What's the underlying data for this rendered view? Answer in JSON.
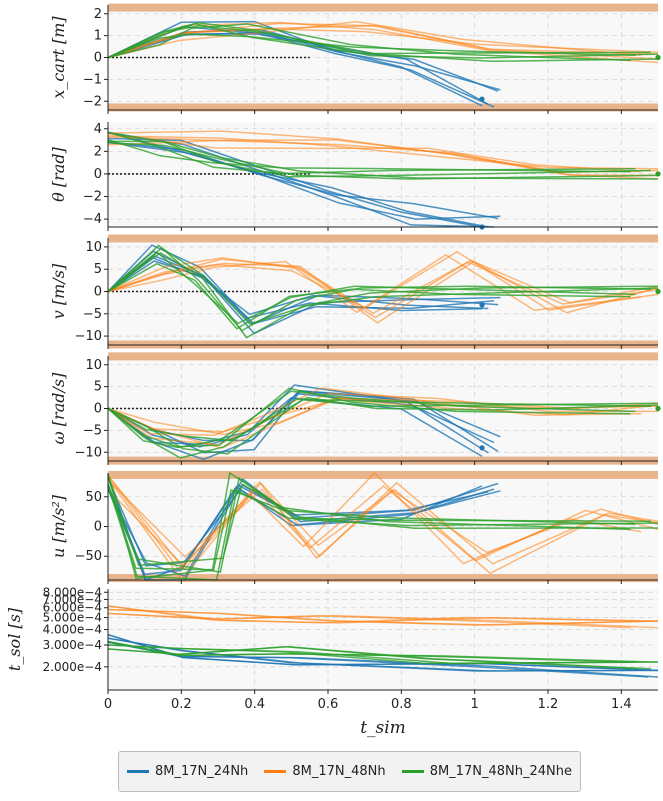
{
  "chart_data": {
    "type": "line",
    "xlabel": "t_sim",
    "x_ticks": [
      "0",
      "0.2",
      "0.4",
      "0.6",
      "0.8",
      "1",
      "1.2",
      "1.4"
    ],
    "xlim": [
      0,
      1.5
    ],
    "grid": true,
    "legend_position": "bottom-center",
    "series_names": [
      "8M_17N_24Nh",
      "8M_17N_48Nh",
      "8M_17N_48Nh_24Nhe"
    ],
    "colors": {
      "blue": "#1f77b4",
      "orange": "#ff7f0e",
      "green": "#2ca02c",
      "bound": "#e8b48c",
      "reference": "#222222"
    },
    "panels": [
      {
        "ylabel": "x_cart [m]",
        "ylim": [
          -2.4,
          2.4
        ],
        "yticks": [
          "2",
          "1",
          "0",
          "−1",
          "−2"
        ],
        "bounds": [
          2.1,
          -2.1
        ],
        "reference": 0,
        "reference_until": 0.55
      },
      {
        "ylabel": "θ [rad]",
        "ylim": [
          -4.7,
          4.6
        ],
        "yticks": [
          "4",
          "2",
          "0",
          "−2",
          "−4"
        ],
        "bounds": [],
        "reference": 0,
        "reference_until": 0.55
      },
      {
        "ylabel": "v [m/s]",
        "ylim": [
          -12,
          12
        ],
        "yticks": [
          "10",
          "5",
          "0",
          "−5",
          "−10"
        ],
        "bounds": [
          11,
          -11
        ],
        "reference": 0,
        "reference_until": 0.55
      },
      {
        "ylabel": "ω [rad/s]",
        "ylim": [
          -12,
          12
        ],
        "yticks": [
          "10",
          "5",
          "0",
          "−5",
          "−10"
        ],
        "bounds": [
          11,
          -11
        ],
        "reference": 0,
        "reference_until": 0.55
      },
      {
        "ylabel": "u [m/s²]",
        "ylim": [
          -90,
          90
        ],
        "yticks": [
          "50",
          "0",
          "−50"
        ],
        "bounds": [
          80,
          -80
        ],
        "reference": null,
        "reference_until": 0
      },
      {
        "ylabel": "t_sol [s]",
        "scale": "log",
        "ylim": [
          0.00013,
          0.00085
        ],
        "yticks": [
          "8.000e−4",
          "7.000e−4",
          "6.000e−4",
          "5.000e−4",
          "4.000e−4",
          "3.000e−4",
          "2.000e−4"
        ],
        "ytick_values": [
          0.0008,
          0.0007,
          0.0006,
          0.0005,
          0.0004,
          0.0003,
          0.0002
        ],
        "bounds": [],
        "reference": null,
        "reference_until": 0
      }
    ],
    "series": [
      {
        "name": "8M_17N_24Nh",
        "color": "#1f77b4",
        "x_cart": [
          [
            0,
            0
          ],
          [
            0.2,
            1.2
          ],
          [
            0.4,
            1.3
          ],
          [
            0.6,
            0.4
          ],
          [
            0.8,
            -0.3
          ],
          [
            1.02,
            -1.9
          ]
        ],
        "theta": [
          [
            0,
            3.14
          ],
          [
            0.2,
            2.2
          ],
          [
            0.4,
            0.3
          ],
          [
            0.6,
            -1.8
          ],
          [
            0.8,
            -3.6
          ],
          [
            1.02,
            -4.7
          ]
        ],
        "v": [
          [
            0,
            0
          ],
          [
            0.12,
            8
          ],
          [
            0.25,
            4
          ],
          [
            0.38,
            -7
          ],
          [
            0.55,
            -2
          ],
          [
            0.8,
            -3
          ],
          [
            1.02,
            -3
          ]
        ],
        "omega": [
          [
            0,
            0
          ],
          [
            0.12,
            -6
          ],
          [
            0.25,
            -9
          ],
          [
            0.38,
            -7
          ],
          [
            0.5,
            4
          ],
          [
            0.8,
            1
          ],
          [
            1.02,
            -9
          ]
        ],
        "u": [
          [
            0,
            70
          ],
          [
            0.1,
            -75
          ],
          [
            0.2,
            -75
          ],
          [
            0.35,
            75
          ],
          [
            0.5,
            10
          ],
          [
            0.8,
            20
          ],
          [
            1.02,
            60
          ]
        ],
        "t_sol": [
          [
            0,
            0.00034
          ],
          [
            0.2,
            0.00025
          ],
          [
            0.5,
            0.00022
          ],
          [
            1.0,
            0.0002
          ],
          [
            1.5,
            0.00018
          ]
        ]
      },
      {
        "name": "8M_17N_48Nh",
        "color": "#ff7f0e",
        "x_cart": [
          [
            0,
            0
          ],
          [
            0.2,
            1.1
          ],
          [
            0.45,
            1.5
          ],
          [
            0.7,
            1.5
          ],
          [
            1.0,
            0.5
          ],
          [
            1.5,
            0
          ]
        ],
        "theta": [
          [
            0,
            3.14
          ],
          [
            0.3,
            3.0
          ],
          [
            0.6,
            2.9
          ],
          [
            0.9,
            2.0
          ],
          [
            1.2,
            0.3
          ],
          [
            1.5,
            0
          ]
        ],
        "v": [
          [
            0,
            0
          ],
          [
            0.15,
            4
          ],
          [
            0.3,
            7
          ],
          [
            0.5,
            6
          ],
          [
            0.7,
            -5
          ],
          [
            0.95,
            7
          ],
          [
            1.2,
            -4
          ],
          [
            1.5,
            0
          ]
        ],
        "omega": [
          [
            0,
            0
          ],
          [
            0.12,
            -5
          ],
          [
            0.3,
            -7
          ],
          [
            0.45,
            -2
          ],
          [
            0.6,
            3
          ],
          [
            0.9,
            1
          ],
          [
            1.2,
            -1
          ],
          [
            1.5,
            0
          ]
        ],
        "u": [
          [
            0,
            75
          ],
          [
            0.2,
            -70
          ],
          [
            0.4,
            70
          ],
          [
            0.55,
            -40
          ],
          [
            0.75,
            70
          ],
          [
            1.0,
            -60
          ],
          [
            1.3,
            20
          ],
          [
            1.5,
            0
          ]
        ],
        "t_sol": [
          [
            0,
            0.00058
          ],
          [
            0.3,
            0.0005
          ],
          [
            0.6,
            0.00048
          ],
          [
            1.0,
            0.00047
          ],
          [
            1.5,
            0.00045
          ]
        ]
      },
      {
        "name": "8M_17N_48Nh_24Nhe",
        "color": "#2ca02c",
        "x_cart": [
          [
            0,
            0
          ],
          [
            0.15,
            1.0
          ],
          [
            0.24,
            1.5
          ],
          [
            0.4,
            1.2
          ],
          [
            0.7,
            0.3
          ],
          [
            1.0,
            0.05
          ],
          [
            1.5,
            0
          ]
        ],
        "theta": [
          [
            0,
            3.14
          ],
          [
            0.15,
            2.5
          ],
          [
            0.3,
            1.2
          ],
          [
            0.5,
            0.2
          ],
          [
            0.8,
            0
          ],
          [
            1.5,
            0
          ]
        ],
        "v": [
          [
            0,
            0
          ],
          [
            0.14,
            9
          ],
          [
            0.25,
            3
          ],
          [
            0.37,
            -8
          ],
          [
            0.52,
            -2
          ],
          [
            0.7,
            0
          ],
          [
            1.0,
            0
          ],
          [
            1.5,
            0
          ]
        ],
        "omega": [
          [
            0,
            0
          ],
          [
            0.1,
            -6
          ],
          [
            0.2,
            -9
          ],
          [
            0.32,
            -8
          ],
          [
            0.52,
            3
          ],
          [
            0.7,
            1
          ],
          [
            1.0,
            0
          ],
          [
            1.5,
            0
          ]
        ],
        "u": [
          [
            0,
            75
          ],
          [
            0.08,
            -75
          ],
          [
            0.3,
            -75
          ],
          [
            0.35,
            75
          ],
          [
            0.5,
            20
          ],
          [
            0.8,
            5
          ],
          [
            1.5,
            0
          ]
        ],
        "t_sol": [
          [
            0,
            0.0003
          ],
          [
            0.2,
            0.00026
          ],
          [
            0.5,
            0.00027
          ],
          [
            0.9,
            0.00023
          ],
          [
            1.5,
            0.00021
          ]
        ]
      }
    ]
  },
  "legend": {
    "items": [
      {
        "label": "8M_17N_24Nh",
        "color": "#1f77b4"
      },
      {
        "label": "8M_17N_48Nh",
        "color": "#ff7f0e"
      },
      {
        "label": "8M_17N_48Nh_24Nhe",
        "color": "#2ca02c"
      }
    ]
  }
}
